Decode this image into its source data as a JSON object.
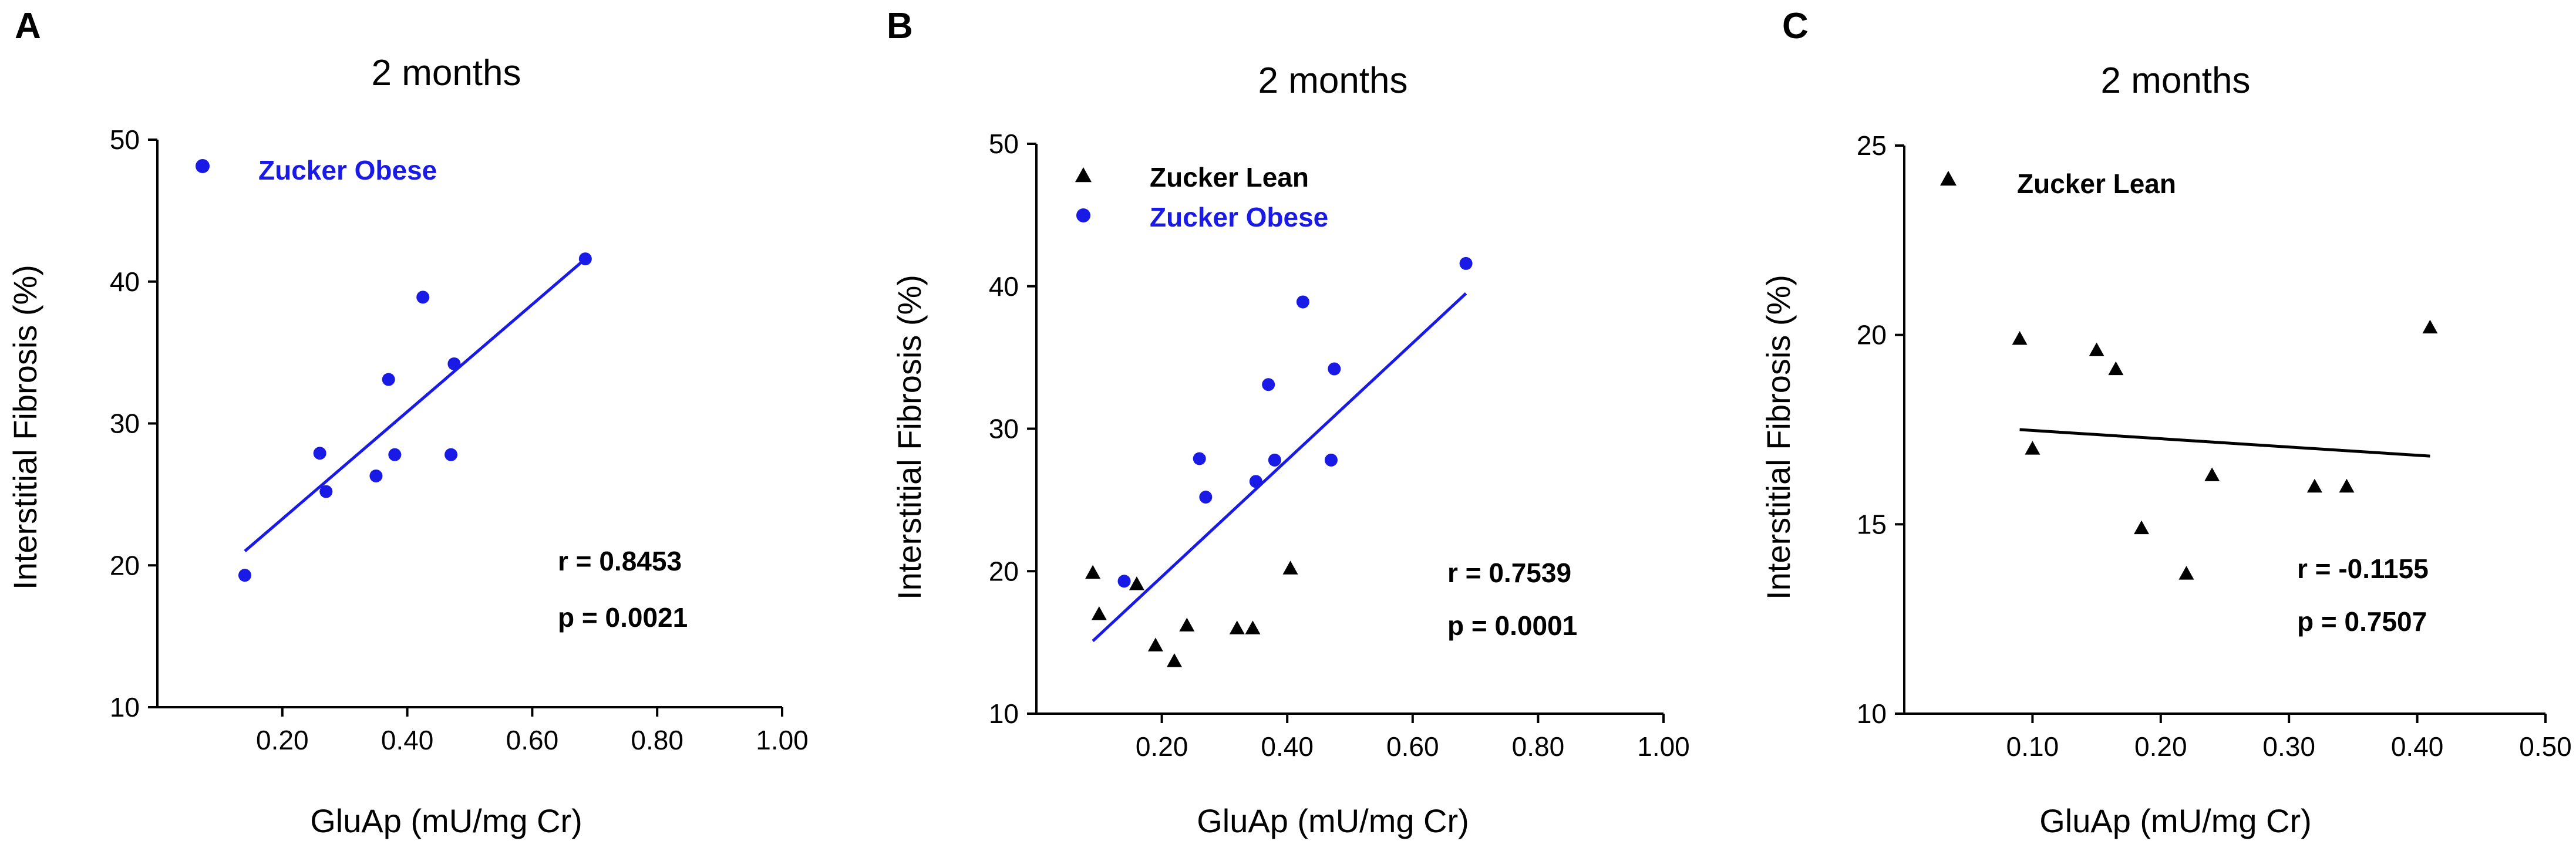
{
  "colors": {
    "lean": "#000000",
    "obese": "#1a1ae6"
  },
  "chart_data": [
    {
      "type": "scatter",
      "panel": "A",
      "title": "2  months",
      "xlabel": "GluAp (mU/mg Cr)",
      "ylabel": "Interstitial Fibrosis (%)",
      "xlim": [
        0,
        1.0
      ],
      "ylim": [
        10,
        50
      ],
      "xticks": [
        0.2,
        0.4,
        0.6,
        0.8,
        1.0
      ],
      "xtick_labels": [
        "0.20",
        "0.40",
        "0.60",
        "0.80",
        "1.00"
      ],
      "yticks": [
        10,
        20,
        30,
        40,
        50
      ],
      "ytick_labels": [
        "10",
        "20",
        "30",
        "40",
        "50"
      ],
      "legend": [
        {
          "name": "Zucker Obese",
          "marker": "circle",
          "color": "obese"
        }
      ],
      "series": [
        {
          "name": "Zucker Obese",
          "marker": "circle",
          "color": "obese",
          "points": [
            [
              0.14,
              19.3
            ],
            [
              0.26,
              27.9
            ],
            [
              0.27,
              25.2
            ],
            [
              0.35,
              26.3
            ],
            [
              0.37,
              33.1
            ],
            [
              0.38,
              27.8
            ],
            [
              0.425,
              38.9
            ],
            [
              0.47,
              27.8
            ],
            [
              0.475,
              34.2
            ],
            [
              0.685,
              41.6
            ]
          ]
        }
      ],
      "fit": {
        "color": "obese",
        "x": [
          0.14,
          0.685
        ],
        "y": [
          21.0,
          41.6
        ]
      },
      "stats": {
        "r": "r = 0.8453",
        "p": "p = 0.0021"
      }
    },
    {
      "type": "scatter",
      "panel": "B",
      "title": "2  months",
      "xlabel": "GluAp (mU/mg Cr)",
      "ylabel": "Interstitial Fibrosis (%)",
      "xlim": [
        0,
        1.0
      ],
      "ylim": [
        10,
        50
      ],
      "xticks": [
        0.2,
        0.4,
        0.6,
        0.8,
        1.0
      ],
      "xtick_labels": [
        "0.20",
        "0.40",
        "0.60",
        "0.80",
        "1.00"
      ],
      "yticks": [
        10,
        20,
        30,
        40,
        50
      ],
      "ytick_labels": [
        "10",
        "20",
        "30",
        "40",
        "50"
      ],
      "legend": [
        {
          "name": "Zucker Lean",
          "marker": "triangle",
          "color": "lean"
        },
        {
          "name": "Zucker Obese",
          "marker": "circle",
          "color": "obese"
        }
      ],
      "series": [
        {
          "name": "Zucker Lean",
          "marker": "triangle",
          "color": "lean",
          "points": [
            [
              0.09,
              19.9
            ],
            [
              0.1,
              17.0
            ],
            [
              0.16,
              19.1
            ],
            [
              0.19,
              14.8
            ],
            [
              0.22,
              13.7
            ],
            [
              0.24,
              16.2
            ],
            [
              0.32,
              16.0
            ],
            [
              0.345,
              16.0
            ],
            [
              0.405,
              20.2
            ]
          ]
        },
        {
          "name": "Zucker Obese",
          "marker": "circle",
          "color": "obese",
          "points": [
            [
              0.14,
              19.3
            ],
            [
              0.26,
              27.9
            ],
            [
              0.27,
              25.2
            ],
            [
              0.35,
              26.3
            ],
            [
              0.37,
              33.1
            ],
            [
              0.38,
              27.8
            ],
            [
              0.425,
              38.9
            ],
            [
              0.47,
              27.8
            ],
            [
              0.475,
              34.2
            ],
            [
              0.685,
              41.6
            ]
          ]
        }
      ],
      "fit": {
        "color": "obese",
        "x": [
          0.09,
          0.685
        ],
        "y": [
          15.1,
          39.5
        ]
      },
      "stats": {
        "r": "r = 0.7539",
        "p": "p = 0.0001"
      }
    },
    {
      "type": "scatter",
      "panel": "C",
      "title": "2 months",
      "xlabel": "GluAp (mU/mg Cr)",
      "ylabel": "Interstitial Fibrosis (%)",
      "xlim": [
        0,
        0.5
      ],
      "ylim": [
        10,
        25
      ],
      "xticks": [
        0.1,
        0.2,
        0.3,
        0.4,
        0.5
      ],
      "xtick_labels": [
        "0.10",
        "0.20",
        "0.30",
        "0.40",
        "0.50"
      ],
      "yticks": [
        10,
        15,
        20,
        25
      ],
      "ytick_labels": [
        "10",
        "15",
        "20",
        "25"
      ],
      "legend": [
        {
          "name": "Zucker Lean",
          "marker": "triangle",
          "color": "lean"
        }
      ],
      "series": [
        {
          "name": "Zucker Lean",
          "marker": "triangle",
          "color": "lean",
          "points": [
            [
              0.09,
              19.9
            ],
            [
              0.1,
              17.0
            ],
            [
              0.15,
              19.6
            ],
            [
              0.165,
              19.1
            ],
            [
              0.185,
              14.9
            ],
            [
              0.22,
              13.7
            ],
            [
              0.24,
              16.3
            ],
            [
              0.32,
              16.0
            ],
            [
              0.345,
              16.0
            ],
            [
              0.41,
              20.2
            ]
          ]
        }
      ],
      "fit": {
        "color": "lean",
        "x": [
          0.09,
          0.41
        ],
        "y": [
          17.5,
          16.8
        ]
      },
      "stats": {
        "r": "r = -0.1155",
        "p": "p = 0.7507"
      }
    }
  ]
}
